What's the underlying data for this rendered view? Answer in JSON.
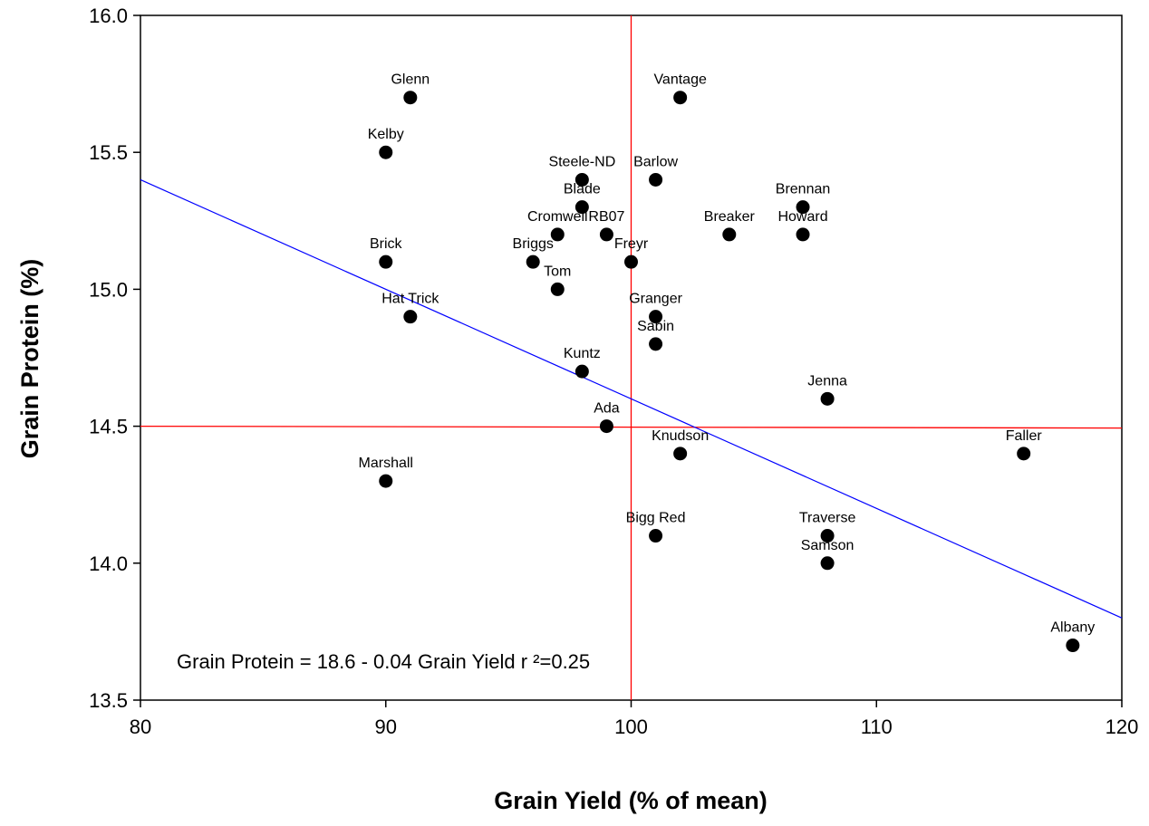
{
  "chart_data": {
    "type": "scatter",
    "title": "",
    "xlabel": "Grain Yield (% of mean)",
    "ylabel": "Grain Protein (%)",
    "xlim": [
      80,
      120
    ],
    "ylim": [
      13.5,
      16.0
    ],
    "xticks": [
      80,
      90,
      100,
      110,
      120
    ],
    "yticks": [
      13.5,
      14.0,
      14.5,
      15.0,
      15.5,
      16.0
    ],
    "xtick_labels": [
      "80",
      "90",
      "100",
      "110",
      "120"
    ],
    "ytick_labels": [
      "13.5",
      "14.0",
      "14.5",
      "15.0",
      "15.5",
      "16.0"
    ],
    "grid": false,
    "legend": "none",
    "point_color": "#000000",
    "points": [
      {
        "label": "Glenn",
        "x": 91,
        "y": 15.7
      },
      {
        "label": "Vantage",
        "x": 102,
        "y": 15.7
      },
      {
        "label": "Kelby",
        "x": 90,
        "y": 15.5
      },
      {
        "label": "Steele-ND",
        "x": 98,
        "y": 15.4
      },
      {
        "label": "Barlow",
        "x": 101,
        "y": 15.4
      },
      {
        "label": "Brennan",
        "x": 107,
        "y": 15.3
      },
      {
        "label": "Blade",
        "x": 98,
        "y": 15.3
      },
      {
        "label": "Cromwell",
        "x": 97,
        "y": 15.2
      },
      {
        "label": "RB07",
        "x": 99,
        "y": 15.2
      },
      {
        "label": "Breaker",
        "x": 104,
        "y": 15.2
      },
      {
        "label": "Howard",
        "x": 107,
        "y": 15.2
      },
      {
        "label": "Brick",
        "x": 90,
        "y": 15.1
      },
      {
        "label": "Briggs",
        "x": 96,
        "y": 15.1
      },
      {
        "label": "Freyr",
        "x": 100,
        "y": 15.1
      },
      {
        "label": "Tom",
        "x": 97,
        "y": 15.0
      },
      {
        "label": "Hat Trick",
        "x": 91,
        "y": 14.9
      },
      {
        "label": "Granger",
        "x": 101,
        "y": 14.9
      },
      {
        "label": "Sabin",
        "x": 101,
        "y": 14.8
      },
      {
        "label": "Kuntz",
        "x": 98,
        "y": 14.7
      },
      {
        "label": "Jenna",
        "x": 108,
        "y": 14.6
      },
      {
        "label": "Ada",
        "x": 99,
        "y": 14.5
      },
      {
        "label": "Knudson",
        "x": 102,
        "y": 14.4
      },
      {
        "label": "Faller",
        "x": 116,
        "y": 14.4
      },
      {
        "label": "Marshall",
        "x": 90,
        "y": 14.3
      },
      {
        "label": "Bigg Red",
        "x": 101,
        "y": 14.1
      },
      {
        "label": "Traverse",
        "x": 108,
        "y": 14.1
      },
      {
        "label": "Samson",
        "x": 108,
        "y": 14.0
      },
      {
        "label": "Albany",
        "x": 118,
        "y": 13.7
      }
    ],
    "regression": {
      "intercept": 18.6,
      "slope": -0.04,
      "r2": 0.25,
      "color": "#0000ff",
      "label": "Grain Protein = 18.6 - 0.04 Grain Yield r ²=0.25"
    },
    "reference_lines": {
      "vertical_x": 100,
      "horizontal_y": 14.5,
      "color": "#ff0000"
    }
  }
}
